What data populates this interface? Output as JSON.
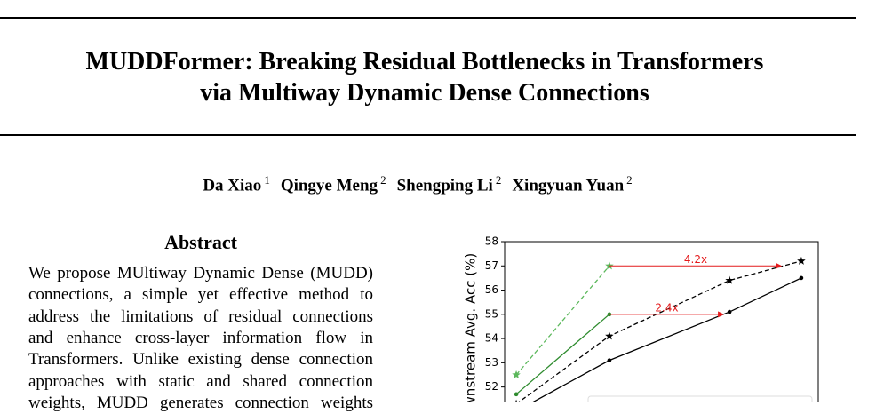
{
  "header": {
    "title_lines": [
      "MUDDFormer: Breaking Residual Bottlenecks in Transformers",
      "via Multiway Dynamic Dense Connections"
    ]
  },
  "authors": [
    {
      "name": "Da Xiao",
      "affil": 1
    },
    {
      "name": "Qingye Meng",
      "affil": 2
    },
    {
      "name": "Shengping Li",
      "affil": 2
    },
    {
      "name": "Xingyuan Yuan",
      "affil": 2
    }
  ],
  "abstract": {
    "heading": "Abstract",
    "lines": [
      "We propose MUltiway Dynamic Dense (MUDD)",
      "connections, a simple yet effective method to",
      "address the limitations of residual connections",
      "and enhance cross-layer information flow in",
      "Transformers. Unlike existing dense connection",
      "approaches with static and shared connection",
      "weights, MUDD generates connection weights"
    ]
  },
  "chart_data": {
    "type": "line",
    "y_label": "Downstream Avg. Acc (%)",
    "xlim": [
      0,
      100
    ],
    "ylim": [
      51.4,
      58
    ],
    "yticks": [
      52,
      53,
      54,
      55,
      56,
      57,
      58
    ],
    "series": [
      {
        "color": "#5cb85c",
        "linestyle": "dashed",
        "marker": "star",
        "x": [
          3.7,
          33.4
        ],
        "values": [
          52.5,
          57.0
        ]
      },
      {
        "color": "#2e8b2e",
        "linestyle": "solid",
        "marker": "circle",
        "x": [
          3.7,
          33.4
        ],
        "values": [
          51.7,
          55.0
        ]
      },
      {
        "color": "#000000",
        "linestyle": "dashed",
        "marker": "star",
        "x": [
          3.7,
          33.4,
          71.7,
          94.6
        ],
        "values": [
          51.3,
          54.1,
          56.4,
          57.2
        ]
      },
      {
        "color": "#000000",
        "linestyle": "solid",
        "marker": "circle",
        "x": [
          3.7,
          33.4,
          71.7,
          94.6
        ],
        "values": [
          51.0,
          53.1,
          55.1,
          56.5
        ]
      }
    ],
    "annotations": [
      {
        "text": "4.2x",
        "x": [
          33.4,
          88.4
        ],
        "y": 57.0,
        "color": "#e41a1c"
      },
      {
        "text": "2.4x",
        "x": [
          33.4,
          70.0
        ],
        "y": 55.0,
        "color": "#e41a1c"
      }
    ]
  }
}
